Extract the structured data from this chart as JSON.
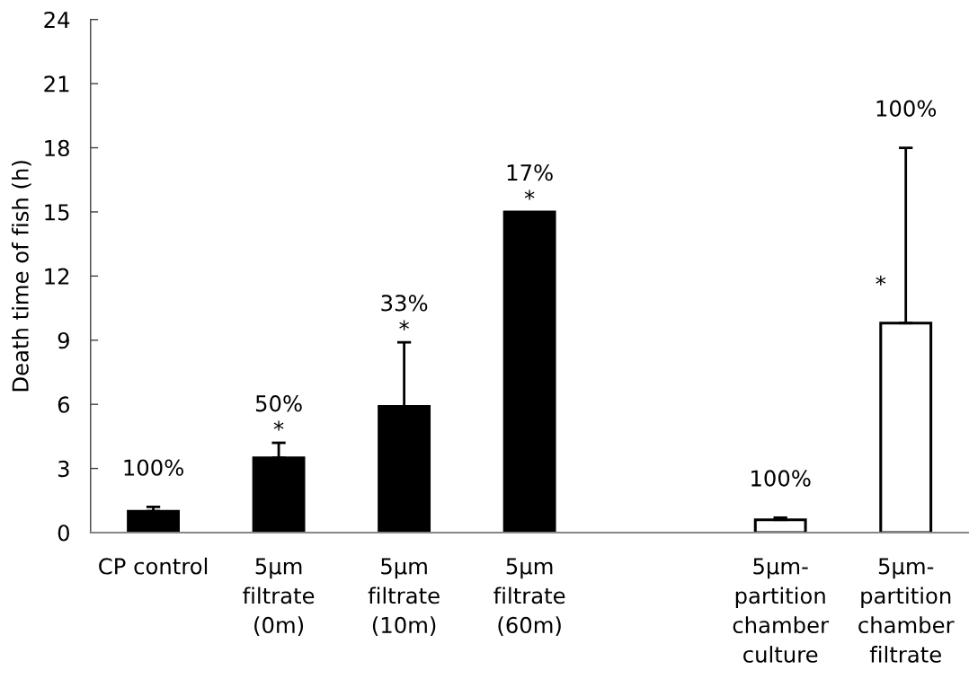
{
  "chart_data": {
    "type": "bar",
    "ylabel": "Death time of fish (h)",
    "categories": [
      "CP control",
      "5µm\nfiltrate\n(0m)",
      "5µm\nfiltrate\n(10m)",
      "5µm\nfiltrate\n(60m)",
      null,
      "5µm-\npartition\nchamber\nculture",
      "5µm-\npartition\nchamber\nfiltrate"
    ],
    "values": [
      1.0,
      3.5,
      5.9,
      15,
      null,
      0.6,
      9.8
    ],
    "colors": [
      "#000000",
      "#000000",
      "#000000",
      "#000000",
      null,
      "#ffffff",
      "#ffffff"
    ],
    "errors": [
      [
        1.0,
        1.2
      ],
      [
        3.5,
        4.2
      ],
      [
        5.9,
        8.9
      ],
      null,
      null,
      [
        0.6,
        0.7
      ],
      [
        9.8,
        18
      ]
    ],
    "ylim": [
      0,
      24
    ],
    "yticks": [
      0,
      3,
      6,
      9,
      12,
      15,
      18,
      21,
      24
    ],
    "annotations": [
      {
        "text": "100%",
        "x": "CP control",
        "y": 1.2
      },
      {
        "text": "*",
        "x": "5µm\nfiltrate\n(0m)",
        "y": 4.2
      },
      {
        "text": "50%",
        "x": "5µm\nfiltrate\n(0m)",
        "y": 4.2
      },
      {
        "text": "*",
        "x": "5µm\nfiltrate\n(10m)",
        "y": 8.9
      },
      {
        "text": "33%",
        "x": "5µm\nfiltrate\n(10m)",
        "y": 8.9
      },
      {
        "text": "*",
        "x": "5µm\nfiltrate\n(60m)",
        "y": 15
      },
      {
        "text": "17%",
        "x": "5µm\nfiltrate\n(60m)",
        "y": 15
      },
      {
        "text": "100%",
        "x": "5µm-\npartition\nchamber\nculture",
        "y": 0.7
      },
      {
        "text": "100%",
        "x": "5µm-\npartition\nchamber\nfiltrate",
        "y": 18
      },
      {
        "text": "*",
        "x": "5µm-\npartition\nchamber\nfiltrate",
        "y": 9.8
      }
    ]
  }
}
